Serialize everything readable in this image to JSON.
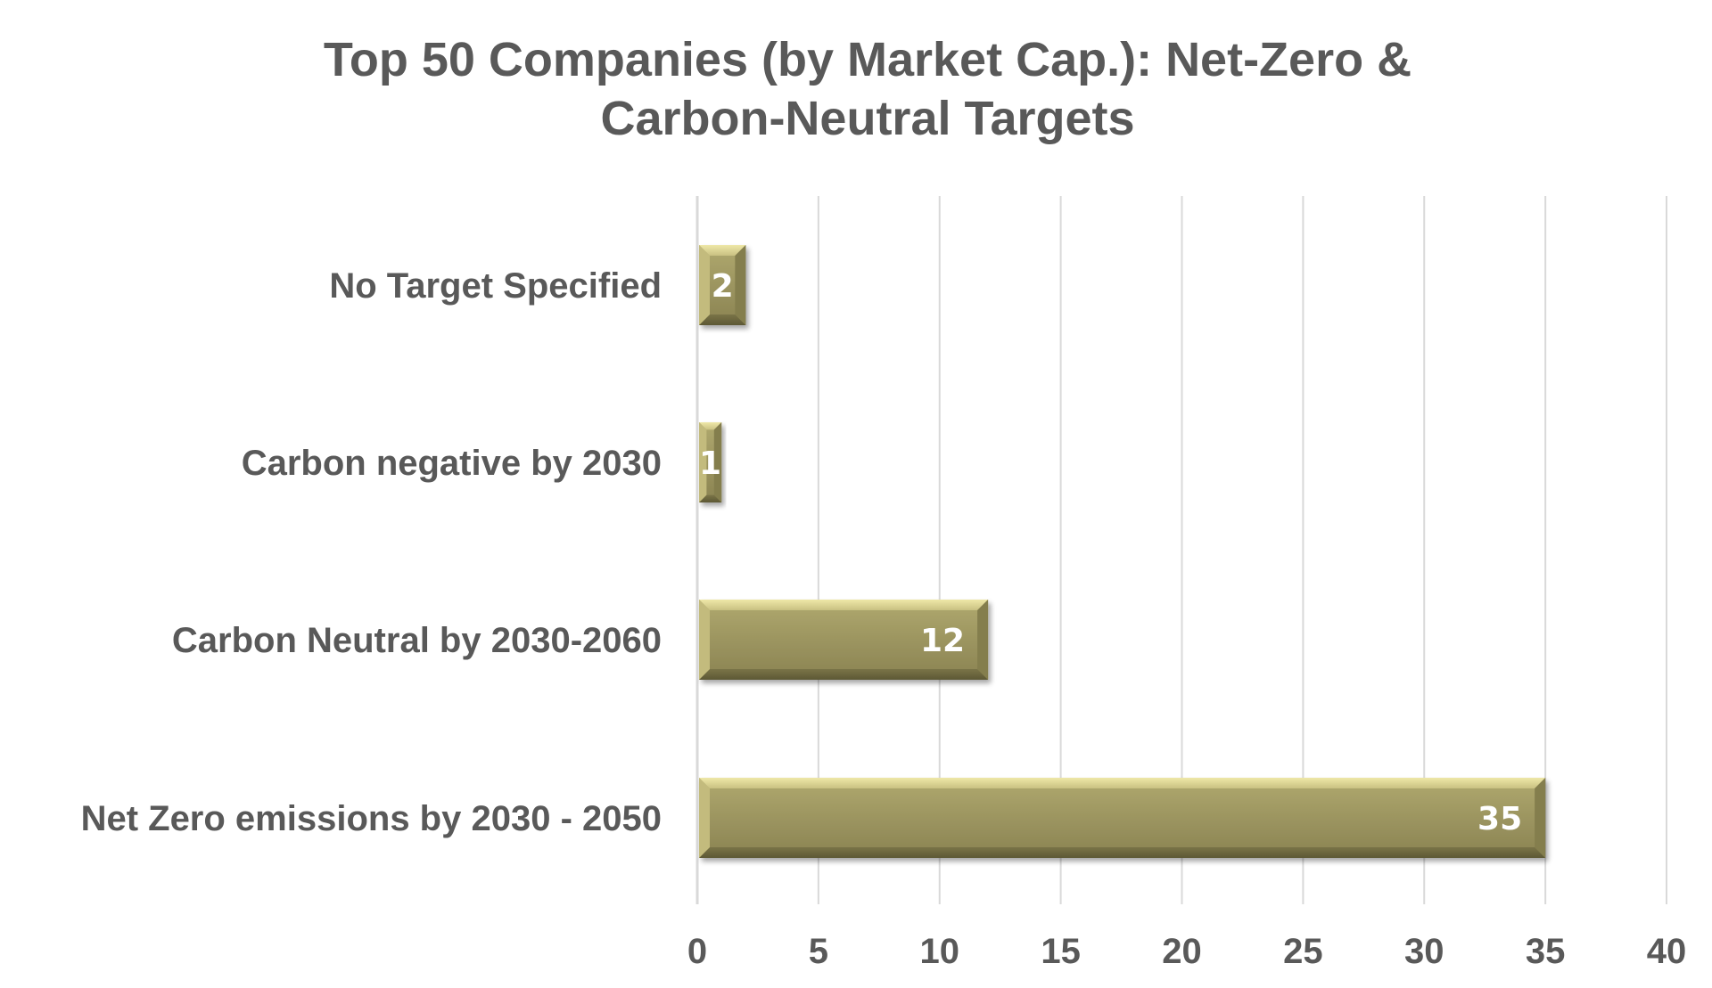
{
  "chart_data": {
    "type": "bar",
    "orientation": "horizontal",
    "title": "Top 50 Companies (by Market Cap.): Net-Zero & Carbon-Neutral Targets",
    "title_lines": [
      "Top 50 Companies (by Market Cap.): Net-Zero &",
      "Carbon-Neutral Targets"
    ],
    "categories": [
      "No Target Specified",
      "Carbon negative by 2030",
      "Carbon Neutral by 2030-2060",
      "Net Zero emissions by 2030 - 2050"
    ],
    "values": [
      2,
      1,
      12,
      35
    ],
    "data_labels": [
      "2",
      "1",
      "12",
      "35"
    ],
    "xlim": [
      0,
      40
    ],
    "xticks": [
      0,
      5,
      10,
      15,
      20,
      25,
      30,
      35,
      40
    ],
    "xtick_labels": [
      "0",
      "5",
      "10",
      "15",
      "20",
      "25",
      "30",
      "35",
      "40"
    ],
    "xlabel": "",
    "ylabel": "",
    "grid": true,
    "legend": "none",
    "colors": {
      "bar": "#9c9560",
      "bar_light": "#e6df9c",
      "bar_dark": "#6f6a40",
      "text": "#595959",
      "grid": "#d9d9d9",
      "data_label": "#ffffff"
    }
  }
}
